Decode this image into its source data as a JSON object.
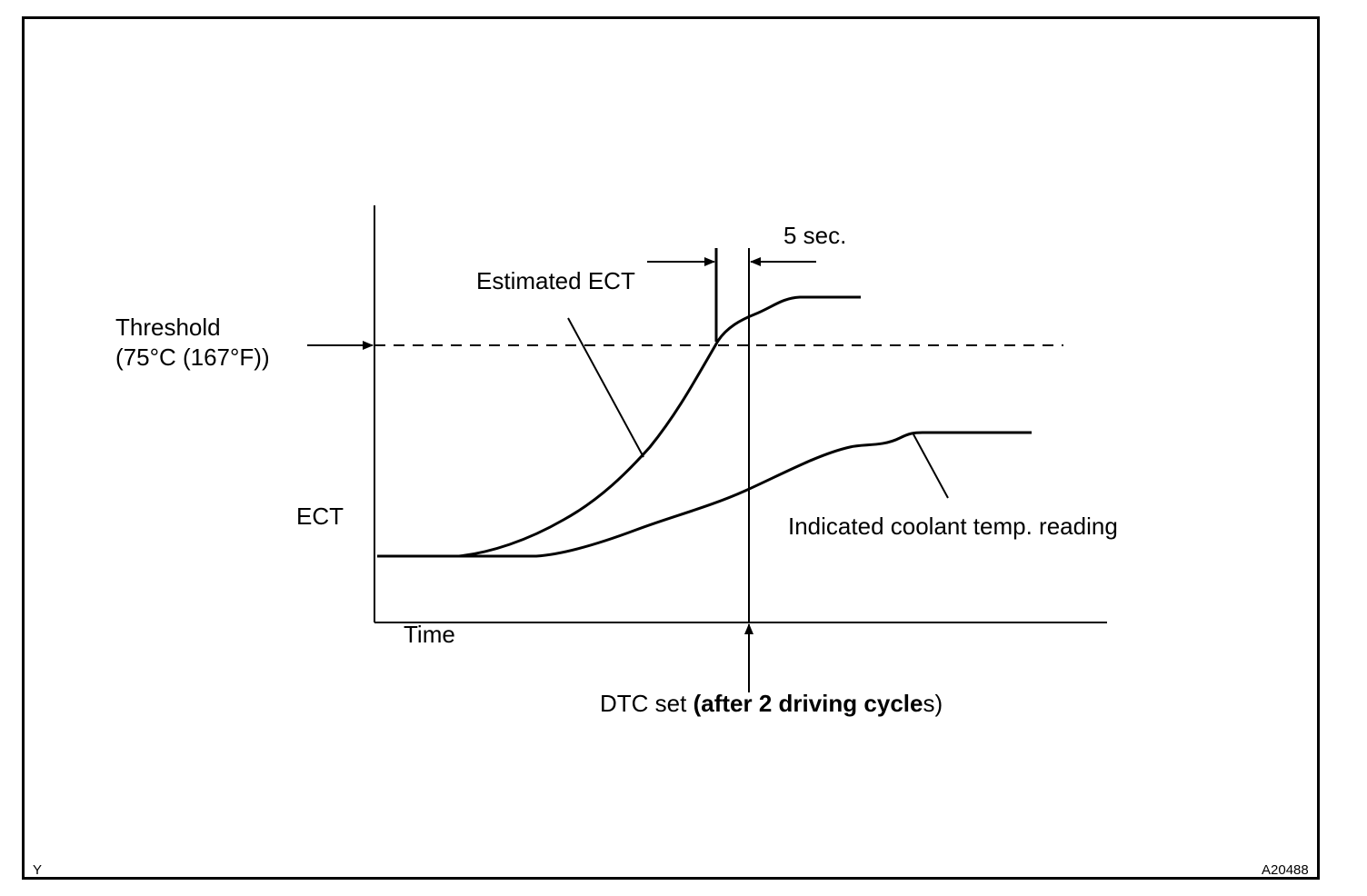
{
  "labels": {
    "y_axis": "ECT",
    "x_axis": "Time",
    "threshold_title": "Threshold",
    "threshold_value": "(75°C (167°F))",
    "estimated_curve": "Estimated ECT",
    "indicated_curve": "Indicated coolant temp. reading",
    "delay": "5 sec.",
    "dtc_prefix": "DTC set ",
    "dtc_bold": "(after 2 driving cycle",
    "dtc_suffix": "s)",
    "corner_left": "Y",
    "corner_right": "A20488"
  },
  "colors": {
    "line": "#000000",
    "background": "#ffffff"
  }
}
